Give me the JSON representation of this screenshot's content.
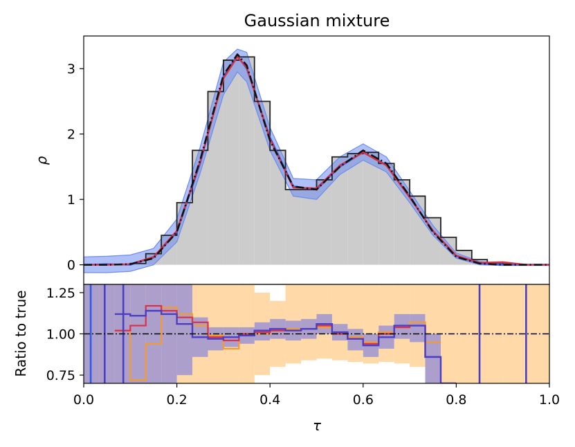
{
  "figure": {
    "title": "Gaussian mixture"
  },
  "chart_data": [
    {
      "panel": "top",
      "type": "line",
      "title": "Gaussian mixture",
      "xlabel": "",
      "ylabel": "ρ",
      "xlim": [
        0.0,
        1.0
      ],
      "ylim": [
        -0.3,
        3.5
      ],
      "yticks": [
        0,
        1,
        2,
        3
      ],
      "ytick_labels": [
        "0",
        "1",
        "2",
        "3"
      ],
      "grid": false,
      "colors": {
        "histogram_fill": "#cccccc",
        "histogram_edge": "#222222",
        "true_density": "#111111",
        "red_estimate": "#d6324a",
        "blue_estimate": "#2e5be8",
        "blue_band": "#6b8cf0"
      },
      "histogram": {
        "bin_width": 0.03333,
        "bin_starts": [
          0.0,
          0.0333,
          0.0667,
          0.1,
          0.1333,
          0.1667,
          0.2,
          0.2333,
          0.2667,
          0.3,
          0.3333,
          0.3667,
          0.4,
          0.4333,
          0.4667,
          0.5,
          0.5333,
          0.5667,
          0.6,
          0.6333,
          0.6667,
          0.7,
          0.7333,
          0.7667,
          0.8,
          0.8333,
          0.8667,
          0.9,
          0.9333,
          0.9667
        ],
        "values": [
          0.0,
          0.0,
          0.0,
          0.02,
          0.17,
          0.45,
          0.95,
          1.75,
          2.65,
          3.13,
          3.18,
          2.5,
          1.75,
          1.15,
          1.15,
          1.3,
          1.65,
          1.7,
          1.72,
          1.55,
          1.3,
          1.05,
          0.72,
          0.42,
          0.22,
          0.08,
          0.03,
          0.01,
          0.0,
          0.0
        ]
      },
      "x": [
        0.0,
        0.05,
        0.1,
        0.15,
        0.2,
        0.25,
        0.3,
        0.33,
        0.35,
        0.4,
        0.45,
        0.5,
        0.55,
        0.6,
        0.65,
        0.7,
        0.75,
        0.8,
        0.85,
        0.9,
        0.95,
        1.0
      ],
      "series": [
        {
          "values": [
            0.0,
            0.0,
            0.01,
            0.1,
            0.5,
            1.6,
            2.9,
            3.22,
            3.05,
            1.9,
            1.2,
            1.15,
            1.5,
            1.75,
            1.55,
            1.05,
            0.5,
            0.12,
            0.02,
            0.0,
            0.0,
            0.0
          ]
        },
        {
          "values": [
            0.0,
            0.0,
            0.01,
            0.12,
            0.52,
            1.58,
            2.85,
            3.18,
            3.02,
            1.92,
            1.18,
            1.17,
            1.52,
            1.72,
            1.52,
            1.03,
            0.52,
            0.14,
            0.03,
            0.04,
            0.0,
            0.0
          ]
        },
        {
          "values": [
            0.0,
            0.01,
            0.0,
            0.11,
            0.5,
            1.55,
            2.88,
            3.2,
            3.0,
            1.95,
            1.2,
            1.15,
            1.5,
            1.72,
            1.53,
            1.04,
            0.51,
            0.13,
            0.02,
            0.0,
            0.0,
            0.0
          ],
          "band_lower": [
            -0.12,
            -0.12,
            -0.1,
            0.0,
            0.35,
            1.4,
            2.6,
            2.95,
            2.8,
            1.75,
            1.05,
            1.0,
            1.38,
            1.6,
            1.42,
            0.95,
            0.45,
            0.1,
            0.0,
            -0.01,
            -0.01,
            -0.01
          ],
          "band_upper": [
            0.12,
            0.13,
            0.15,
            0.25,
            0.7,
            1.8,
            3.1,
            3.3,
            3.25,
            2.1,
            1.32,
            1.3,
            1.65,
            1.85,
            1.65,
            1.13,
            0.6,
            0.18,
            0.05,
            0.02,
            0.01,
            0.01
          ]
        }
      ]
    },
    {
      "panel": "bottom",
      "type": "line",
      "xlabel": "τ",
      "ylabel": "Ratio to true",
      "xlim": [
        0.0,
        1.0
      ],
      "ylim": [
        0.7,
        1.3
      ],
      "xticks": [
        0.0,
        0.2,
        0.4,
        0.6,
        0.8,
        1.0
      ],
      "xtick_labels": [
        "0.0",
        "0.2",
        "0.4",
        "0.6",
        "0.8",
        "1.0"
      ],
      "yticks": [
        0.75,
        1.0,
        1.25
      ],
      "ytick_labels": [
        "0.75",
        "1.00",
        "1.25"
      ],
      "reference_line": 1.0,
      "colors": {
        "orange_band": "#ffd9a8",
        "orange": "#f59a2c",
        "purple_band": "#a89ccc",
        "purple": "#4a3fc4",
        "blue": "#2e5be8",
        "red": "#d6324a",
        "ref": "#000000"
      },
      "bin_edges": [
        0.0,
        0.0333,
        0.0667,
        0.1,
        0.1333,
        0.1667,
        0.2,
        0.2333,
        0.2667,
        0.3,
        0.3333,
        0.3667,
        0.4,
        0.4333,
        0.4667,
        0.5,
        0.5333,
        0.5667,
        0.6,
        0.6333,
        0.6667,
        0.7,
        0.7333,
        0.7667,
        0.8,
        0.8333,
        0.8667,
        0.9,
        0.9333,
        0.9667,
        1.0
      ],
      "series": [
        {
          "values": [
            null,
            null,
            1.02,
            0.72,
            0.94,
            1.16,
            1.12,
            1.05,
            0.99,
            0.91,
            0.99,
            1.0,
            1.02,
            1.03,
            1.03,
            1.04,
            1.0,
            0.98,
            0.95,
            1.01,
            1.04,
            1.07,
            0.95,
            null,
            null,
            null,
            null,
            null,
            null,
            null
          ],
          "band_lower": [
            0.7,
            0.7,
            0.7,
            0.7,
            0.7,
            0.7,
            0.7,
            0.7,
            0.7,
            0.7,
            0.7,
            0.75,
            0.8,
            0.82,
            0.84,
            0.85,
            0.84,
            0.83,
            0.82,
            0.83,
            0.82,
            0.8,
            0.7,
            0.7,
            0.7,
            0.7,
            0.7,
            0.7,
            0.7,
            0.7
          ],
          "band_upper": [
            1.3,
            1.3,
            1.3,
            1.3,
            1.3,
            1.3,
            1.3,
            1.3,
            1.3,
            1.3,
            1.3,
            1.25,
            1.2,
            1.3,
            1.3,
            1.3,
            1.3,
            1.3,
            1.3,
            1.3,
            1.3,
            1.3,
            1.3,
            1.3,
            1.3,
            1.3,
            1.3,
            1.3,
            1.3,
            1.3
          ]
        },
        {
          "values": [
            null,
            null,
            1.02,
            1.05,
            1.17,
            1.14,
            1.1,
            1.07,
            0.98,
            0.96,
            1.0,
            1.01,
            1.02,
            1.02,
            1.03,
            1.05,
            1.0,
            0.97,
            0.94,
            1.0,
            1.04,
            1.05,
            0.86,
            null,
            null,
            null,
            null,
            null,
            null,
            null
          ]
        },
        {
          "values": [
            null,
            null,
            1.12,
            1.11,
            1.14,
            1.12,
            1.06,
            0.98,
            0.97,
            0.98,
            0.99,
            1.02,
            1.03,
            1.02,
            1.03,
            1.06,
            1.01,
            0.97,
            0.93,
            0.98,
            1.05,
            1.05,
            0.86,
            0.7,
            null,
            null,
            null,
            null,
            null,
            null
          ],
          "band_lower": [
            0.7,
            0.7,
            0.7,
            0.7,
            0.7,
            0.7,
            0.75,
            0.86,
            0.9,
            0.92,
            0.94,
            0.96,
            0.97,
            0.96,
            0.97,
            1.0,
            0.96,
            0.9,
            0.86,
            0.91,
            0.97,
            0.95,
            0.7,
            0.7,
            0.7,
            0.7,
            0.7,
            0.7,
            0.7,
            0.7
          ],
          "band_upper": [
            1.3,
            1.3,
            1.3,
            1.3,
            1.3,
            1.3,
            1.3,
            1.1,
            1.04,
            1.04,
            1.04,
            1.07,
            1.09,
            1.08,
            1.09,
            1.12,
            1.06,
            1.03,
            1.0,
            1.05,
            1.12,
            1.12,
            1.0,
            0.7,
            0.7,
            0.7,
            0.7,
            0.7,
            0.7,
            0.7
          ]
        }
      ],
      "vertical_lines": [
        {
          "x": 0.015,
          "color": "blue"
        },
        {
          "x": 0.045,
          "color": "purple"
        },
        {
          "x": 0.085,
          "color": "purple"
        },
        {
          "x": 0.85,
          "color": "purple"
        },
        {
          "x": 0.95,
          "color": "purple"
        }
      ],
      "orange_right_bars": [
        {
          "x0": 0.82,
          "x1": 0.885
        },
        {
          "x0": 0.915,
          "x1": 0.985
        }
      ]
    }
  ]
}
